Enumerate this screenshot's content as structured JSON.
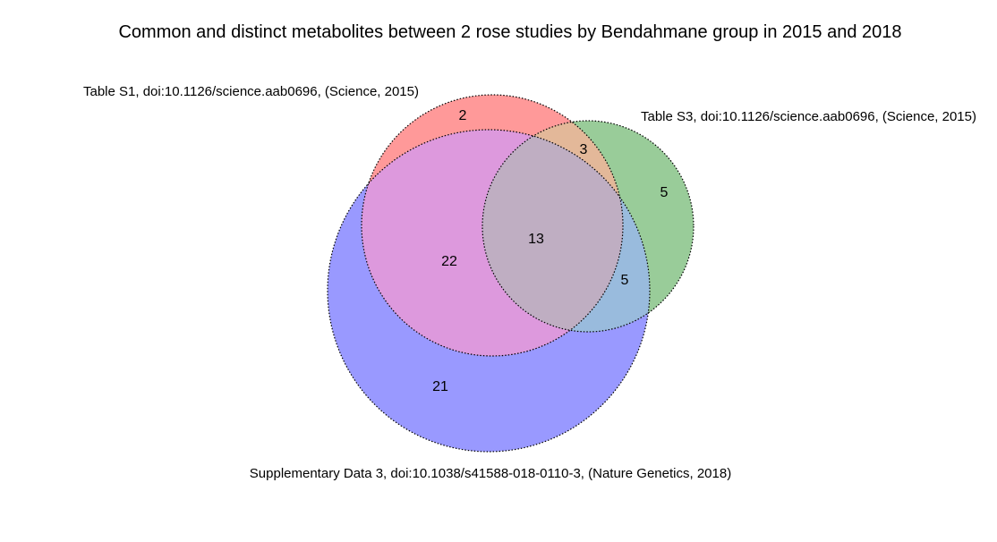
{
  "title": "Common and distinct metabolites between 2 rose studies by Bendahmane group in 2015 and 2018",
  "sets": [
    {
      "id": "s1",
      "label": "Table S1, doi:10.1126/science.aab0696, (Science, 2015)",
      "color": "#ff0000"
    },
    {
      "id": "s3",
      "label": "Table S3, doi:10.1126/science.aab0696, (Science, 2015)",
      "color": "#008000"
    },
    {
      "id": "sd3",
      "label": "Supplementary Data 3, doi:10.1038/s41588-018-0110-3, (Nature Genetics, 2018)",
      "color": "#0000ff"
    }
  ],
  "chart_data": {
    "type": "venn3",
    "regions": {
      "s1_only": "2",
      "s3_only": "5",
      "sd3_only": "21",
      "s1_s3_only": "3",
      "s1_sd3_only": "22",
      "s3_sd3_only": "5",
      "all_three": "13"
    }
  }
}
